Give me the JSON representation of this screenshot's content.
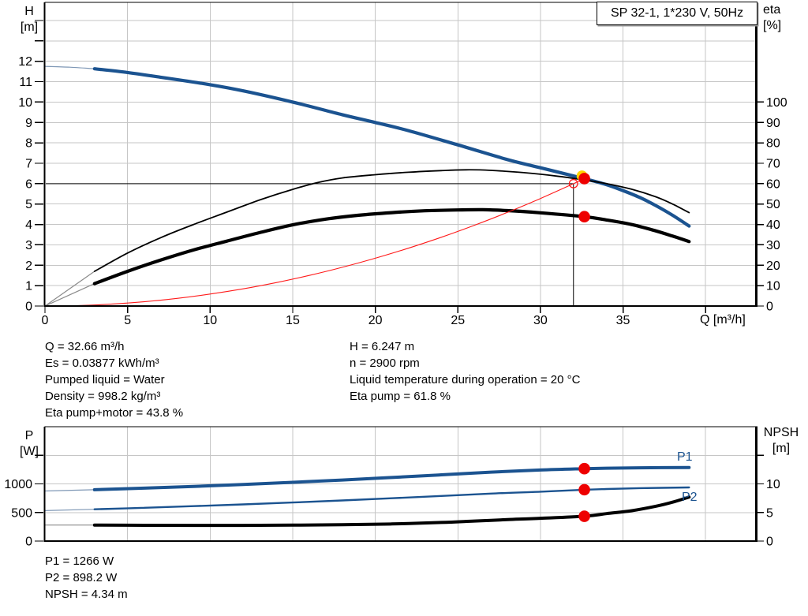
{
  "header": {
    "title_box": "SP 32-1, 1*230 V, 50Hz"
  },
  "axis_titles": {
    "top_left_line1": "H",
    "top_left_line2": "[m]",
    "top_right_line1": "eta",
    "top_right_line2": "[%]",
    "x_label": "Q [m³/h]",
    "bottom_left_line1": "P",
    "bottom_left_line2": "[W]",
    "bottom_right_line1": "NPSH",
    "bottom_right_line2": "[m]"
  },
  "curve_labels": {
    "p1": "P1",
    "p2": "P2"
  },
  "results_top_left": [
    "Q = 32.66 m³/h",
    "Es = 0.03877 kWh/m³",
    "Pumped liquid = Water",
    "Density = 998.2 kg/m³",
    "Eta pump+motor = 43.8 %"
  ],
  "results_top_right": [
    "H = 6.247 m",
    "n = 2900 rpm",
    "Liquid temperature during operation = 20 °C",
    "Eta pump = 61.8 %"
  ],
  "results_bottom": [
    "P1 = 1266 W",
    "P2 = 898.2 W",
    "NPSH = 4.34 m"
  ],
  "colors": {
    "curve_blue": "#1b5390",
    "curve_black": "#000000",
    "system_red": "#ff1a1a",
    "marker_red": "#ee0000",
    "marker_yellow": "#ffd400",
    "grid": "#c6c6c6",
    "lead_gray": "#8a8a8a",
    "lead_blue": "#7e97b5",
    "axis": "#000000"
  },
  "chart_data": [
    {
      "id": "head-efficiency-chart",
      "type": "line",
      "title": "SP 32-1, 1*230 V, 50Hz",
      "x_axis": {
        "label": "Q [m³/h]",
        "min": 0,
        "max": 43,
        "labeled_ticks": [
          0,
          5,
          10,
          15,
          20,
          25,
          30,
          35
        ],
        "unlabeled_ticks": [
          40
        ],
        "grid_step": 5
      },
      "y_left": {
        "label": "H [m]",
        "min": 0,
        "max": 14.85,
        "labeled_ticks": [
          0,
          1,
          2,
          3,
          4,
          5,
          6,
          7,
          8,
          9,
          10,
          11,
          12
        ],
        "unlabeled_ticks": [
          13,
          14
        ],
        "grid": true
      },
      "y_right": {
        "label": "eta [%]",
        "min": 0,
        "max": 148.5,
        "labeled_ticks": [
          0,
          10,
          20,
          30,
          40,
          50,
          60,
          70,
          80,
          90,
          100
        ],
        "unlabeled_ticks": []
      },
      "series": [
        {
          "name": "H curve",
          "axis": "left",
          "color": "blue",
          "width": 4.2,
          "lead": [
            [
              0,
              11.75
            ],
            [
              1.5,
              11.71
            ],
            [
              3,
              11.63
            ]
          ],
          "points": [
            [
              3,
              11.63
            ],
            [
              5,
              11.45
            ],
            [
              7,
              11.22
            ],
            [
              10,
              10.85
            ],
            [
              12,
              10.55
            ],
            [
              15,
              10.0
            ],
            [
              18,
              9.38
            ],
            [
              20,
              9.0
            ],
            [
              22,
              8.6
            ],
            [
              25,
              7.9
            ],
            [
              28,
              7.18
            ],
            [
              30,
              6.78
            ],
            [
              32.66,
              6.247
            ],
            [
              34,
              5.95
            ],
            [
              35,
              5.66
            ],
            [
              36,
              5.33
            ],
            [
              37,
              4.92
            ],
            [
              38,
              4.45
            ],
            [
              39,
              3.92
            ]
          ]
        },
        {
          "name": "Eta pump",
          "axis": "right",
          "color": "black",
          "width": 1.8,
          "lead": [
            [
              0,
              0
            ],
            [
              3,
              17
            ]
          ],
          "points": [
            [
              3,
              17
            ],
            [
              5,
              26
            ],
            [
              7,
              33.5
            ],
            [
              9,
              40
            ],
            [
              11,
              46
            ],
            [
              13,
              52
            ],
            [
              15,
              57.2
            ],
            [
              16.5,
              60.5
            ],
            [
              18,
              62.8
            ],
            [
              20,
              64.4
            ],
            [
              22,
              65.6
            ],
            [
              24,
              66.4
            ],
            [
              25.5,
              66.8
            ],
            [
              27,
              66.5
            ],
            [
              29,
              65.4
            ],
            [
              31,
              63.7
            ],
            [
              32.66,
              61.8
            ],
            [
              34,
              60
            ],
            [
              35.5,
              57.3
            ],
            [
              37,
              53.5
            ],
            [
              38,
              50
            ],
            [
              39,
              45.8
            ]
          ]
        },
        {
          "name": "Eta pump+motor",
          "axis": "right",
          "color": "black",
          "width": 4.2,
          "lead": [
            [
              0,
              0
            ],
            [
              3,
              11
            ]
          ],
          "points": [
            [
              3,
              11
            ],
            [
              5,
              17
            ],
            [
              7,
              22.5
            ],
            [
              9,
              27.5
            ],
            [
              11,
              31.8
            ],
            [
              13,
              36
            ],
            [
              15,
              39.8
            ],
            [
              17,
              42.6
            ],
            [
              19,
              44.5
            ],
            [
              21,
              45.8
            ],
            [
              23,
              46.7
            ],
            [
              25,
              47.1
            ],
            [
              26.5,
              47.2
            ],
            [
              28,
              46.8
            ],
            [
              30,
              45.7
            ],
            [
              32.66,
              43.8
            ],
            [
              34,
              42.2
            ],
            [
              35.5,
              40.0
            ],
            [
              37,
              36.8
            ],
            [
              38,
              34.3
            ],
            [
              39,
              31.6
            ]
          ]
        },
        {
          "name": "System curve",
          "axis": "left",
          "color": "red",
          "width": 1.1,
          "points": [
            [
              0,
              0
            ],
            [
              2,
              0.023
            ],
            [
              4,
              0.094
            ],
            [
              6,
              0.21
            ],
            [
              8,
              0.375
            ],
            [
              10,
              0.586
            ],
            [
              12,
              0.843
            ],
            [
              14,
              1.148
            ],
            [
              16,
              1.5
            ],
            [
              18,
              1.898
            ],
            [
              20,
              2.343
            ],
            [
              22,
              2.835
            ],
            [
              24,
              3.373
            ],
            [
              26,
              3.959
            ],
            [
              28,
              4.591
            ],
            [
              30,
              5.271
            ],
            [
              32,
              5.997
            ],
            [
              32.66,
              6.247
            ]
          ]
        }
      ],
      "duty_point": {
        "q": 32,
        "h": 6
      },
      "operating_points": [
        {
          "series": "H curve",
          "q": 32.66,
          "value": 6.247,
          "axis": "left"
        },
        {
          "series": "Eta pump+motor",
          "q": 32.66,
          "value": 43.8,
          "axis": "right"
        }
      ]
    },
    {
      "id": "power-npsh-chart",
      "type": "line",
      "x_axis": {
        "label": "Q [m³/h]",
        "min": 0,
        "max": 43,
        "labeled_ticks": [],
        "unlabeled_ticks": [],
        "grid_step": 5
      },
      "y_left": {
        "label": "P [W]",
        "min": 0,
        "max": 2000,
        "labeled_ticks": [
          0,
          500,
          1000
        ],
        "unlabeled_ticks": [
          1500
        ],
        "grid": true
      },
      "y_right": {
        "label": "NPSH [m]",
        "min": 0,
        "max": 20,
        "labeled_ticks": [
          0,
          5,
          10
        ],
        "unlabeled_ticks": [
          15
        ]
      },
      "series": [
        {
          "name": "P1",
          "axis": "left",
          "color": "blue",
          "width": 4,
          "lead": [
            [
              0,
              876
            ],
            [
              3,
              898
            ]
          ],
          "points": [
            [
              3,
              898
            ],
            [
              6,
              925
            ],
            [
              9,
              956
            ],
            [
              12,
              990
            ],
            [
              15,
              1027
            ],
            [
              18,
              1068
            ],
            [
              21,
              1112
            ],
            [
              24,
              1158
            ],
            [
              27,
              1205
            ],
            [
              30,
              1243
            ],
            [
              32.66,
              1266
            ],
            [
              34,
              1274
            ],
            [
              36,
              1281
            ],
            [
              39,
              1287
            ]
          ]
        },
        {
          "name": "P2",
          "axis": "left",
          "color": "blue",
          "width": 2.4,
          "lead": [
            [
              0,
              532
            ],
            [
              3,
              556
            ]
          ],
          "points": [
            [
              3,
              556
            ],
            [
              6,
              582
            ],
            [
              9,
              611
            ],
            [
              12,
              642
            ],
            [
              15,
              675
            ],
            [
              18,
              711
            ],
            [
              21,
              749
            ],
            [
              24,
              789
            ],
            [
              27,
              831
            ],
            [
              30,
              864
            ],
            [
              32.66,
              898.2
            ],
            [
              34,
              910
            ],
            [
              36,
              925
            ],
            [
              39,
              938
            ]
          ]
        },
        {
          "name": "NPSH",
          "axis": "right",
          "color": "black",
          "width": 4,
          "lead": [
            [
              0,
              2.8
            ],
            [
              3,
              2.8
            ]
          ],
          "points": [
            [
              3,
              2.8
            ],
            [
              6,
              2.76
            ],
            [
              9,
              2.74
            ],
            [
              12,
              2.74
            ],
            [
              15,
              2.78
            ],
            [
              18,
              2.86
            ],
            [
              21,
              3.0
            ],
            [
              24,
              3.25
            ],
            [
              26,
              3.5
            ],
            [
              28,
              3.75
            ],
            [
              30,
              3.98
            ],
            [
              32.66,
              4.34
            ],
            [
              34,
              4.8
            ],
            [
              35.5,
              5.3
            ],
            [
              37,
              6.1
            ],
            [
              38,
              6.8
            ],
            [
              39,
              7.7
            ]
          ]
        }
      ],
      "operating_points": [
        {
          "series": "P1",
          "q": 32.66,
          "value": 1266,
          "axis": "left"
        },
        {
          "series": "P2",
          "q": 32.66,
          "value": 898.2,
          "axis": "left"
        },
        {
          "series": "NPSH",
          "q": 32.66,
          "value": 4.34,
          "axis": "right"
        }
      ]
    }
  ]
}
